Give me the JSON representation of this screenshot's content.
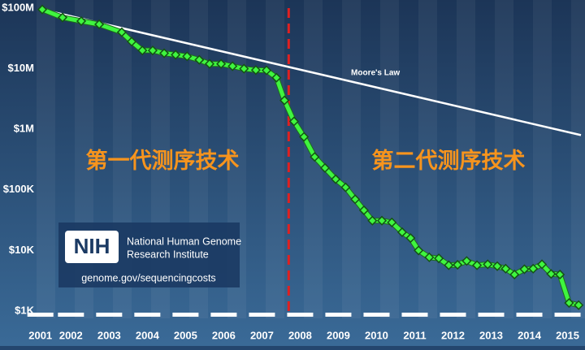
{
  "chart_data": {
    "type": "line",
    "xlim": [
      2001.5,
      2015.75
    ],
    "xticks": [
      {
        "value": 2001.6,
        "label": "2001"
      },
      {
        "value": 2002.4,
        "label": "2002"
      },
      {
        "value": 2003.4,
        "label": "2003"
      },
      {
        "value": 2004.4,
        "label": "2004"
      },
      {
        "value": 2005.4,
        "label": "2005"
      },
      {
        "value": 2006.4,
        "label": "2006"
      },
      {
        "value": 2007.4,
        "label": "2007"
      },
      {
        "value": 2008.4,
        "label": "2008"
      },
      {
        "value": 2009.4,
        "label": "2009"
      },
      {
        "value": 2010.4,
        "label": "2010"
      },
      {
        "value": 2011.4,
        "label": "2011"
      },
      {
        "value": 2012.4,
        "label": "2012"
      },
      {
        "value": 2013.4,
        "label": "2013"
      },
      {
        "value": 2014.4,
        "label": "2014"
      },
      {
        "value": 2015.4,
        "label": "2015"
      }
    ],
    "ylim": [
      1000,
      100000000
    ],
    "log_y": true,
    "yticks": [
      {
        "value": 1000,
        "label": "$1K"
      },
      {
        "value": 10000,
        "label": "$10K"
      },
      {
        "value": 100000,
        "label": "$100K"
      },
      {
        "value": 1000000,
        "label": "$1M"
      },
      {
        "value": 10000000,
        "label": "$10M"
      },
      {
        "value": 100000000,
        "label": "$100M"
      }
    ],
    "series": [
      {
        "color": "#3ff53f",
        "markers": true,
        "x": [
          2001.65,
          2002.18,
          2002.67,
          2003.14,
          2003.73,
          2003.99,
          2004.27,
          2004.54,
          2004.84,
          2005.14,
          2005.44,
          2005.76,
          2006.03,
          2006.33,
          2006.63,
          2006.93,
          2007.24,
          2007.52,
          2007.78,
          2007.99,
          2008.24,
          2008.5,
          2008.78,
          2009.05,
          2009.33,
          2009.59,
          2009.84,
          2010.07,
          2010.29,
          2010.54,
          2010.8,
          2011.07,
          2011.29,
          2011.5,
          2011.78,
          2012.03,
          2012.29,
          2012.52,
          2012.76,
          2013.03,
          2013.31,
          2013.56,
          2013.78,
          2014.01,
          2014.27,
          2014.5,
          2014.73,
          2014.97,
          2015.2,
          2015.44,
          2015.69
        ],
        "values": [
          95000000,
          70000000,
          61000000,
          54000000,
          40000000,
          28000000,
          20000000,
          20000000,
          18000000,
          17000000,
          16000000,
          14000000,
          12000000,
          12000000,
          11000000,
          10000000,
          9500000,
          9400000,
          7100000,
          3000000,
          1350000,
          750000,
          350000,
          230000,
          150000,
          110000,
          70000,
          46000,
          31000,
          31000,
          29000,
          20000,
          16000,
          10000,
          7700,
          7400,
          5700,
          5800,
          6700,
          5700,
          5900,
          5500,
          5000,
          4000,
          4900,
          5000,
          5900,
          4100,
          4000,
          1360,
          1250
        ]
      },
      {
        "name": "Moore's Law",
        "color": "#ffffff",
        "markers": false,
        "x": [
          2001.65,
          2015.75
        ],
        "values": [
          95000000,
          800000
        ]
      }
    ],
    "divider_x": 2008.1,
    "divider_color": "#e02020",
    "annotations": [
      "第一代测序技术",
      "第二代测序技术"
    ],
    "annotation_color": "#f7941d"
  },
  "logo": {
    "mark": "NIH",
    "line1": "National Human Genome",
    "line2": "Research Institute",
    "url": "genome.gov/sequencingcosts"
  }
}
